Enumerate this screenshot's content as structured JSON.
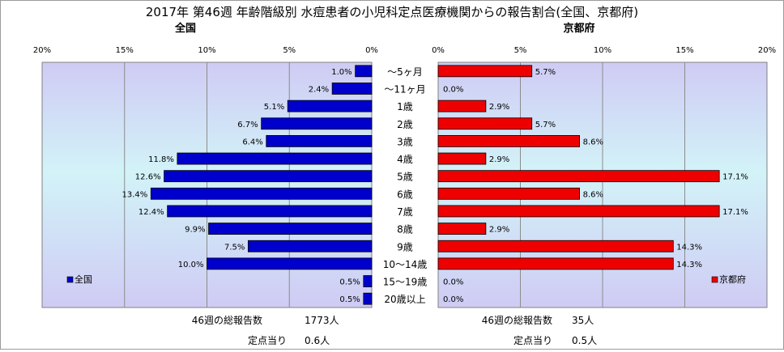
{
  "chart_data": {
    "type": "bar",
    "title": "2017年 第46週 年齢階級別 水痘患者の小児科定点医療機関からの報告割合(全国、京都府)",
    "categories": [
      "～5ヶ月",
      "～11ヶ月",
      "1歳",
      "2歳",
      "3歳",
      "4歳",
      "5歳",
      "6歳",
      "7歳",
      "8歳",
      "9歳",
      "10～14歳",
      "15～19歳",
      "20歳以上"
    ],
    "series": [
      {
        "name": "全国",
        "color": "#0000cc",
        "values": [
          1.0,
          2.4,
          5.1,
          6.7,
          6.4,
          11.8,
          12.6,
          13.4,
          12.4,
          9.9,
          7.5,
          10.0,
          0.5,
          0.5
        ],
        "labels": [
          "1.0%",
          "2.4%",
          "5.1%",
          "6.7%",
          "6.4%",
          "11.8%",
          "12.6%",
          "13.4%",
          "12.4%",
          "9.9%",
          "7.5%",
          "10.0%",
          "0.5%",
          "0.5%"
        ]
      },
      {
        "name": "京都府",
        "color": "#ee0000",
        "values": [
          5.7,
          0.0,
          2.9,
          5.7,
          8.6,
          2.9,
          17.1,
          8.6,
          17.1,
          2.9,
          14.3,
          14.3,
          0.0,
          0.0
        ],
        "labels": [
          "5.7%",
          "0.0%",
          "2.9%",
          "5.7%",
          "8.6%",
          "2.9%",
          "17.1%",
          "8.6%",
          "17.1%",
          "2.9%",
          "14.3%",
          "14.3%",
          "0.0%",
          "0.0%"
        ]
      }
    ],
    "xlim": [
      0,
      20
    ],
    "tick_values": [
      0,
      5,
      10,
      15,
      20
    ],
    "tick_labels": [
      "0%",
      "5%",
      "10%",
      "15%",
      "20%"
    ],
    "left_panel_title": "全国",
    "right_panel_title": "京都府",
    "left_legend": "全国",
    "right_legend": "京都府",
    "legend_position": "bottom-left / bottom-right of each panel",
    "grid": true,
    "footer": {
      "national_total_label": "46週の総報告数",
      "national_total_value": "1773人",
      "national_per_label": "定点当り",
      "national_per_value": "0.6人",
      "kyoto_total_label": "46週の総報告数",
      "kyoto_total_value": "35人",
      "kyoto_per_label": "定点当り",
      "kyoto_per_value": "0.5人"
    }
  }
}
